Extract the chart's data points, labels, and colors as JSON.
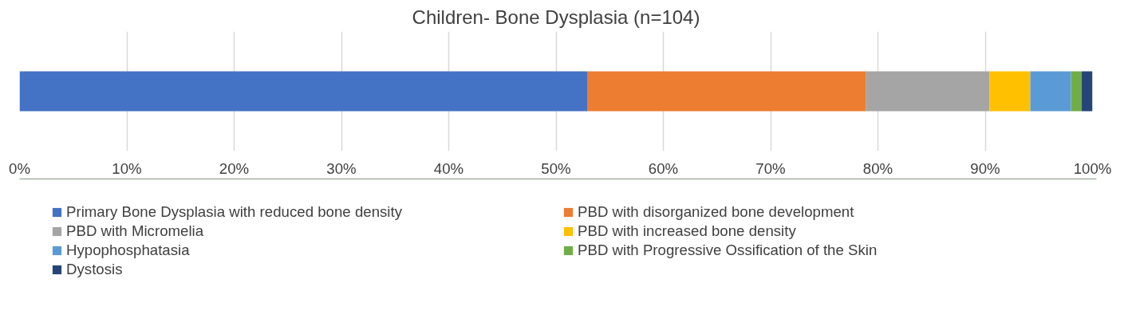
{
  "chart_data": {
    "type": "bar",
    "orientation": "horizontal",
    "stacked": true,
    "title": "Children- Bone Dysplasia (n=104)",
    "categories": [
      null
    ],
    "series": [
      {
        "name": "Primary Bone Dysplasia with reduced bone density",
        "color": "#4472c4",
        "values": [
          52.9
        ]
      },
      {
        "name": "PBD with disorganized bone development",
        "color": "#ed7d31",
        "values": [
          26.0
        ]
      },
      {
        "name": "PBD with Micromelia",
        "color": "#a5a5a5",
        "values": [
          11.5
        ]
      },
      {
        "name": "PBD with increased bone density",
        "color": "#ffc000",
        "values": [
          3.8
        ]
      },
      {
        "name": "Hypophosphatasia",
        "color": "#5b9bd5",
        "values": [
          3.8
        ]
      },
      {
        "name": "PBD with Progressive Ossification of the Skin",
        "color": "#70ad47",
        "values": [
          1.0
        ]
      },
      {
        "name": "Dystosis",
        "color": "#264478",
        "values": [
          1.0
        ]
      }
    ],
    "xlim": [
      0,
      100
    ],
    "xticks": [
      {
        "value": 0,
        "label": "0%"
      },
      {
        "value": 10,
        "label": "10%"
      },
      {
        "value": 20,
        "label": "20%"
      },
      {
        "value": 30,
        "label": "30%"
      },
      {
        "value": 40,
        "label": "40%"
      },
      {
        "value": 50,
        "label": "50%"
      },
      {
        "value": 60,
        "label": "60%"
      },
      {
        "value": 70,
        "label": "70%"
      },
      {
        "value": 80,
        "label": "80%"
      },
      {
        "value": 90,
        "label": "90%"
      },
      {
        "value": 100,
        "label": "100%"
      }
    ],
    "grid": "x",
    "legend": "bottom"
  }
}
